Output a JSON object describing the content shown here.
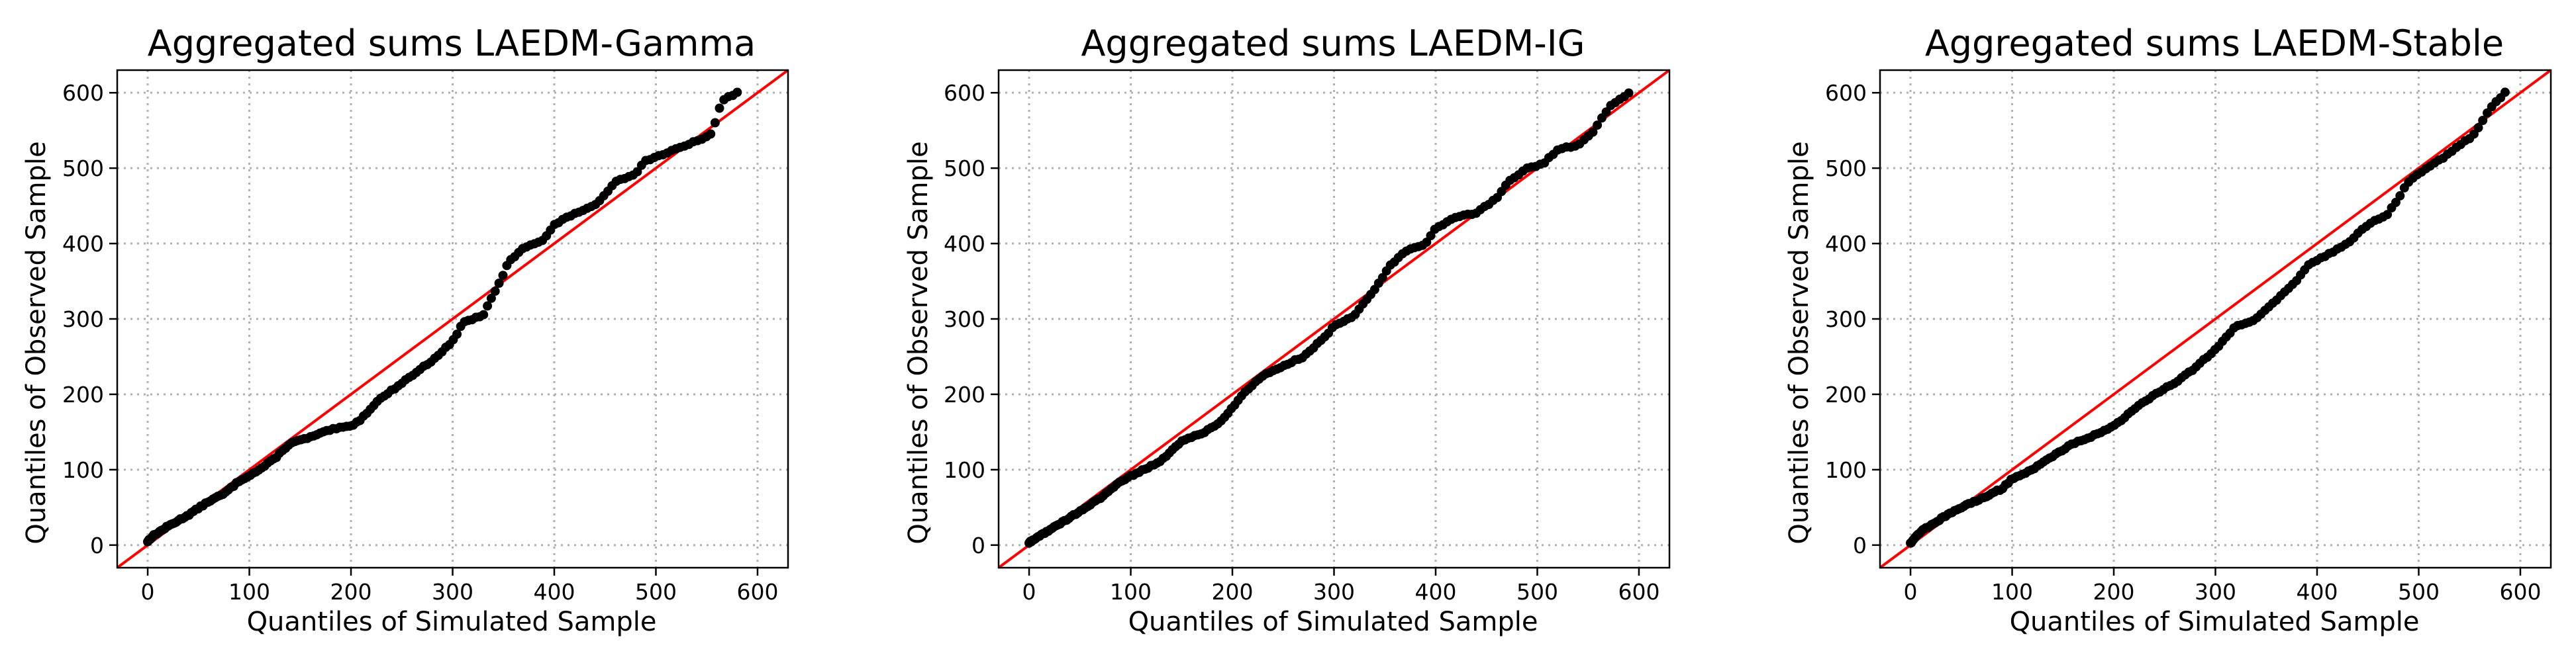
{
  "chart_data": [
    {
      "type": "scatter",
      "title": "Aggregated sums LAEDM-Gamma",
      "xlabel": "Quantiles of Simulated Sample",
      "ylabel": "Quantiles of Observed Sample",
      "xlim": [
        -30,
        630
      ],
      "ylim": [
        -30,
        630
      ],
      "xticks": [
        0,
        100,
        200,
        300,
        400,
        500,
        600
      ],
      "yticks": [
        0,
        100,
        200,
        300,
        400,
        500,
        600
      ],
      "reference_line": "45-degree",
      "grid": true,
      "knots": [
        [
          0,
          5
        ],
        [
          5,
          12
        ],
        [
          20,
          25
        ],
        [
          40,
          40
        ],
        [
          60,
          58
        ],
        [
          75,
          68
        ],
        [
          90,
          85
        ],
        [
          110,
          100
        ],
        [
          125,
          115
        ],
        [
          140,
          135
        ],
        [
          160,
          143
        ],
        [
          180,
          153
        ],
        [
          200,
          158
        ],
        [
          210,
          167
        ],
        [
          225,
          190
        ],
        [
          240,
          205
        ],
        [
          260,
          225
        ],
        [
          280,
          245
        ],
        [
          300,
          270
        ],
        [
          310,
          295
        ],
        [
          330,
          305
        ],
        [
          345,
          345
        ],
        [
          355,
          375
        ],
        [
          370,
          395
        ],
        [
          390,
          405
        ],
        [
          400,
          425
        ],
        [
          420,
          440
        ],
        [
          440,
          450
        ],
        [
          460,
          482
        ],
        [
          480,
          493
        ],
        [
          490,
          510
        ],
        [
          510,
          520
        ],
        [
          530,
          530
        ],
        [
          555,
          545
        ],
        [
          565,
          590
        ],
        [
          580,
          600
        ]
      ],
      "n_points": 180,
      "point_noise": 1
    },
    {
      "type": "scatter",
      "title": "Aggregated sums LAEDM-IG",
      "xlabel": "Quantiles of Simulated Sample",
      "ylabel": "Quantiles of Observed Sample",
      "xlim": [
        -30,
        630
      ],
      "ylim": [
        -30,
        630
      ],
      "xticks": [
        0,
        100,
        200,
        300,
        400,
        500,
        600
      ],
      "yticks": [
        0,
        100,
        200,
        300,
        400,
        500,
        600
      ],
      "reference_line": "45-degree",
      "grid": true,
      "knots": [
        [
          0,
          3
        ],
        [
          10,
          12
        ],
        [
          30,
          28
        ],
        [
          50,
          45
        ],
        [
          70,
          62
        ],
        [
          90,
          85
        ],
        [
          110,
          98
        ],
        [
          130,
          112
        ],
        [
          150,
          138
        ],
        [
          170,
          148
        ],
        [
          190,
          165
        ],
        [
          210,
          200
        ],
        [
          230,
          225
        ],
        [
          250,
          238
        ],
        [
          270,
          250
        ],
        [
          290,
          275
        ],
        [
          300,
          290
        ],
        [
          320,
          305
        ],
        [
          340,
          340
        ],
        [
          355,
          370
        ],
        [
          370,
          390
        ],
        [
          390,
          400
        ],
        [
          400,
          420
        ],
        [
          420,
          435
        ],
        [
          440,
          440
        ],
        [
          460,
          460
        ],
        [
          470,
          480
        ],
        [
          490,
          500
        ],
        [
          505,
          505
        ],
        [
          520,
          525
        ],
        [
          540,
          530
        ],
        [
          555,
          548
        ],
        [
          570,
          580
        ],
        [
          585,
          595
        ],
        [
          590,
          600
        ]
      ],
      "n_points": 180,
      "point_noise": 1
    },
    {
      "type": "scatter",
      "title": "Aggregated sums LAEDM-Stable",
      "xlabel": "Quantiles of Simulated Sample",
      "ylabel": "Quantiles of Observed Sample",
      "xlim": [
        -30,
        630
      ],
      "ylim": [
        -30,
        630
      ],
      "xticks": [
        0,
        100,
        200,
        300,
        400,
        500,
        600
      ],
      "yticks": [
        0,
        100,
        200,
        300,
        400,
        500,
        600
      ],
      "reference_line": "45-degree",
      "grid": true,
      "knots": [
        [
          0,
          3
        ],
        [
          10,
          18
        ],
        [
          30,
          35
        ],
        [
          50,
          50
        ],
        [
          70,
          62
        ],
        [
          90,
          75
        ],
        [
          100,
          88
        ],
        [
          120,
          100
        ],
        [
          140,
          118
        ],
        [
          160,
          135
        ],
        [
          180,
          145
        ],
        [
          200,
          158
        ],
        [
          220,
          180
        ],
        [
          240,
          200
        ],
        [
          260,
          215
        ],
        [
          280,
          235
        ],
        [
          300,
          260
        ],
        [
          320,
          290
        ],
        [
          340,
          300
        ],
        [
          360,
          325
        ],
        [
          380,
          350
        ],
        [
          390,
          370
        ],
        [
          410,
          385
        ],
        [
          430,
          400
        ],
        [
          450,
          425
        ],
        [
          470,
          440
        ],
        [
          480,
          460
        ],
        [
          490,
          482
        ],
        [
          500,
          492
        ],
        [
          520,
          510
        ],
        [
          540,
          530
        ],
        [
          555,
          545
        ],
        [
          570,
          580
        ],
        [
          585,
          600
        ]
      ],
      "n_points": 180,
      "point_noise": 1
    }
  ]
}
